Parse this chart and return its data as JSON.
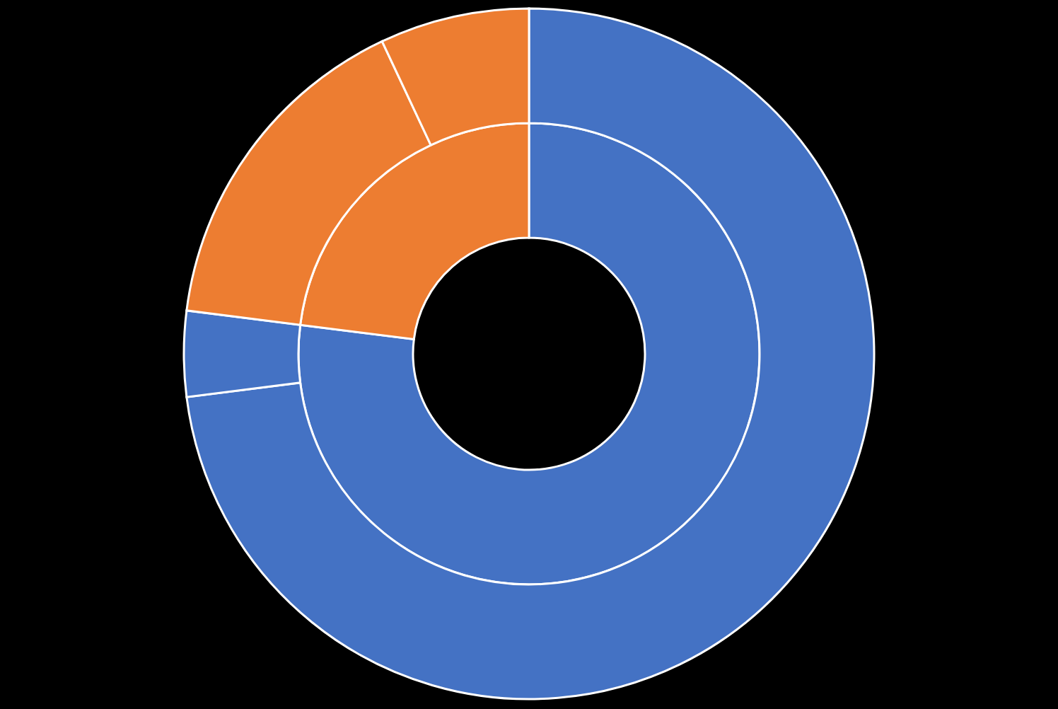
{
  "chart_data": {
    "type": "donut",
    "series": [
      {
        "values": [
          77,
          23
        ],
        "colors": [
          "#4472c4",
          "#ed7d31"
        ]
      },
      {
        "values": [
          73,
          4,
          16,
          7
        ],
        "colors": [
          "#4472c4",
          "#4472c4",
          "#ed7d31",
          "#ed7d31"
        ]
      }
    ],
    "legend": false
  }
}
